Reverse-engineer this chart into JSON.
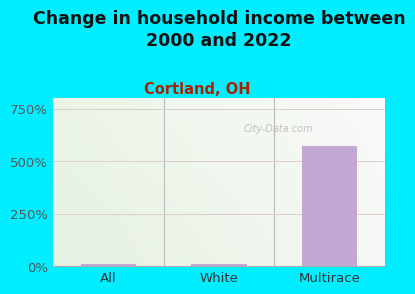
{
  "title": "Change in household income between\n2000 and 2022",
  "subtitle": "Cortland, OH",
  "categories": [
    "All",
    "White",
    "Multirace"
  ],
  "values": [
    8,
    8,
    570
  ],
  "bar_color": "#c4a8d4",
  "title_fontsize": 12.5,
  "subtitle_fontsize": 10.5,
  "subtitle_color": "#aa2200",
  "tick_label_color": "#555555",
  "xticklabel_color": "#333333",
  "background_outer": "#00eeff",
  "background_plot_topleft": "#d8eecc",
  "background_plot_topright": "#f8f8f2",
  "background_plot_bottomleft": "#e8f5d8",
  "background_plot_bottomright": "#fafaf5",
  "yticks": [
    0,
    250,
    500,
    750
  ],
  "ylim": [
    0,
    800
  ],
  "watermark": "City-Data.com",
  "grid_color": "#ddcccc",
  "grid_linewidth": 0.7,
  "divider_color": "#bbbbbb",
  "axis_label_fontsize": 9.5,
  "bar_width": 0.5
}
